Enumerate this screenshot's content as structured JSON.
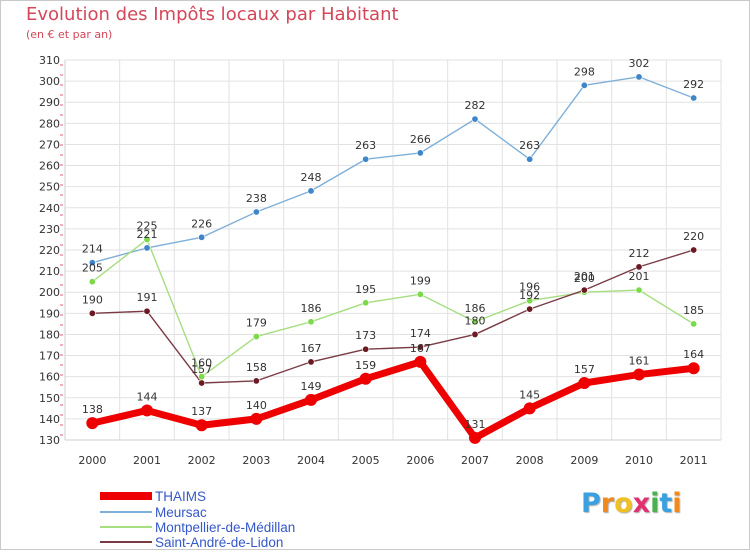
{
  "chart_data": {
    "type": "line",
    "title": "Evolution des Impôts locaux par Habitant",
    "subtitle": "(en € et par an)",
    "xlabel": "",
    "ylabel": "",
    "ylim": [
      130,
      310
    ],
    "y_ticks": [
      130,
      140,
      150,
      160,
      170,
      180,
      190,
      200,
      210,
      220,
      230,
      240,
      250,
      260,
      270,
      280,
      290,
      300,
      310
    ],
    "categories": [
      "2000",
      "2001",
      "2002",
      "2003",
      "2004",
      "2005",
      "2006",
      "2007",
      "2008",
      "2009",
      "2010",
      "2011"
    ],
    "grid": true,
    "series": [
      {
        "name": "Meursac",
        "color": "#7fafd8",
        "marker_color": "#3f86c8",
        "values": [
          214,
          221,
          226,
          238,
          248,
          263,
          266,
          282,
          263,
          298,
          302,
          292
        ]
      },
      {
        "name": "Montpellier-de-Médillan",
        "color": "#a6de80",
        "marker_color": "#7bd94a",
        "values": [
          205,
          225,
          160,
          179,
          186,
          195,
          199,
          186,
          196,
          200,
          201,
          185
        ]
      },
      {
        "name": "Saint-André-de-Lidon",
        "color": "#7a3b45",
        "marker_color": "#6b1a24",
        "values": [
          190,
          191,
          157,
          158,
          167,
          173,
          174,
          180,
          192,
          201,
          212,
          220
        ]
      },
      {
        "name": "THAIMS",
        "color": "#ee0000",
        "marker_color": "#ee0000",
        "values": [
          138,
          144,
          137,
          140,
          149,
          159,
          167,
          131,
          145,
          157,
          161,
          164
        ]
      }
    ]
  },
  "legend": {
    "items": [
      {
        "name": "THAIMS",
        "color": "#ee0000"
      },
      {
        "name": "Meursac",
        "color": "#7fafd8"
      },
      {
        "name": "Montpellier-de-Médillan",
        "color": "#a6de80"
      },
      {
        "name": "Saint-André-de-Lidon",
        "color": "#7a3b45"
      }
    ]
  },
  "logo": {
    "text": "Proxiti",
    "colors": [
      "#3aa0e0",
      "#f08a1c",
      "#f0c020",
      "#e03070",
      "#4caf50",
      "#3aa0e0",
      "#f08a1c"
    ]
  }
}
